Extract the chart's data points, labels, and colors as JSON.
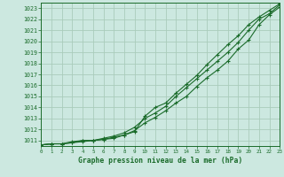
{
  "title": "Graphe pression niveau de la mer (hPa)",
  "bg_color": "#cce8e0",
  "grid_color": "#aaccbb",
  "line_color": "#1a6b2a",
  "xlim": [
    0,
    23
  ],
  "ylim": [
    1010.5,
    1023.5
  ],
  "yticks": [
    1011,
    1012,
    1013,
    1014,
    1015,
    1016,
    1017,
    1018,
    1019,
    1020,
    1021,
    1022,
    1023
  ],
  "xticks": [
    0,
    1,
    2,
    3,
    4,
    5,
    6,
    7,
    8,
    9,
    10,
    11,
    12,
    13,
    14,
    15,
    16,
    17,
    18,
    19,
    20,
    21,
    22,
    23
  ],
  "line1": [
    1010.6,
    1010.7,
    1010.7,
    1010.8,
    1010.9,
    1011.0,
    1011.1,
    1011.2,
    1011.5,
    1011.9,
    1012.6,
    1013.1,
    1013.7,
    1014.4,
    1015.0,
    1015.9,
    1016.7,
    1017.4,
    1018.2,
    1019.3,
    1020.1,
    1021.5,
    1022.4,
    1023.1
  ],
  "line2": [
    1010.6,
    1010.7,
    1010.7,
    1010.9,
    1011.0,
    1011.0,
    1011.2,
    1011.4,
    1011.7,
    1012.2,
    1013.0,
    1013.5,
    1014.1,
    1015.0,
    1015.8,
    1016.6,
    1017.4,
    1018.2,
    1019.0,
    1019.9,
    1021.0,
    1022.0,
    1022.5,
    1023.3
  ],
  "line3": [
    1010.6,
    1010.7,
    1010.7,
    1010.8,
    1011.0,
    1011.0,
    1011.1,
    1011.3,
    1011.5,
    1011.8,
    1013.2,
    1014.0,
    1014.4,
    1015.3,
    1016.1,
    1016.9,
    1017.9,
    1018.8,
    1019.7,
    1020.5,
    1021.5,
    1022.2,
    1022.8,
    1023.4
  ]
}
